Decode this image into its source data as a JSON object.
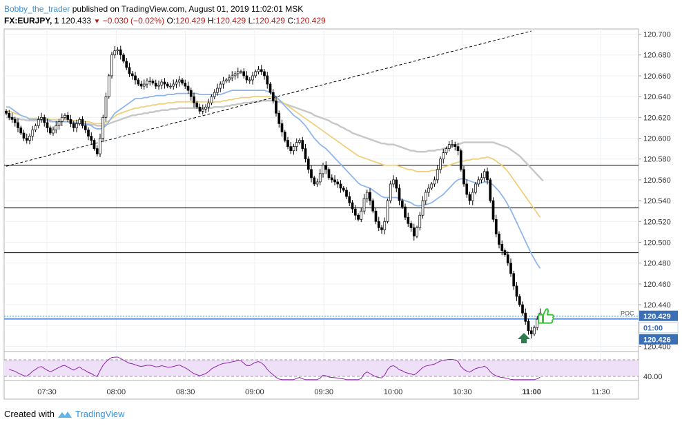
{
  "header": {
    "author": "Bobby_the_trader",
    "published": "published on TradingView.com, August 01, 2019 11:02:01 MSK"
  },
  "ohlc": {
    "symbol": "FX:EURJPY, 1",
    "last": "120.433",
    "change": "−0.030 (−0.02%)",
    "o_label": "O:",
    "o": "120.429",
    "h_label": "H:",
    "h": "120.429",
    "l_label": "L:",
    "l": "120.429",
    "c_label": "C:",
    "c": "120.429"
  },
  "footer": {
    "created_with": "Created with",
    "brand": "TradingView"
  },
  "colors": {
    "up": "#ffffff",
    "down": "#000000",
    "rsi_line": "#8e24aa",
    "rsi_band": "#ede0f7",
    "ema_blue": "#8fb6e8",
    "ema_yellow": "#f0cf7a",
    "ema_gray": "#c8c8c8",
    "price_label": "#3a6fb5",
    "thumb": "#3ac43a",
    "arrow": "#2e7d4f"
  },
  "chart_data": {
    "type": "candlestick",
    "ylim": [
      120.395,
      120.705
    ],
    "y_ticks": [
      "120.700",
      "120.680",
      "120.660",
      "120.640",
      "120.620",
      "120.600",
      "120.580",
      "120.560",
      "120.540",
      "120.520",
      "120.500",
      "120.480",
      "120.460",
      "120.440",
      "120.420",
      "120.400"
    ],
    "x_ticks": [
      "07:30",
      "08:00",
      "08:30",
      "09:00",
      "09:30",
      "10:00",
      "10:30",
      "11:00",
      "11:30"
    ],
    "horizontal_levels": [
      120.574,
      120.533,
      120.49
    ],
    "poc": {
      "label": "POC",
      "value": 120.429
    },
    "price_labels": {
      "current": "120.429",
      "countdown": "01:00",
      "low_marker": "120.426"
    },
    "trendline": {
      "from": [
        0,
        120.573
      ],
      "to": [
        179,
        120.703
      ]
    },
    "rsi": {
      "level_label": "40.00",
      "upper": 70,
      "lower": 30
    },
    "candles_close": [
      120.624,
      120.62,
      120.618,
      120.615,
      120.61,
      120.605,
      120.6,
      120.598,
      120.602,
      120.608,
      120.612,
      120.618,
      120.62,
      120.615,
      120.61,
      120.605,
      120.608,
      120.612,
      120.616,
      120.62,
      120.622,
      120.618,
      120.614,
      120.61,
      120.614,
      120.618,
      120.612,
      120.608,
      120.602,
      120.598,
      120.59,
      120.585,
      120.6,
      120.62,
      120.64,
      120.66,
      120.68,
      120.684,
      120.685,
      120.68,
      120.674,
      120.668,
      120.662,
      120.66,
      120.656,
      120.652,
      120.65,
      120.652,
      120.655,
      120.655,
      120.653,
      120.65,
      120.651,
      120.654,
      120.652,
      120.65,
      120.65,
      120.652,
      120.654,
      120.656,
      120.653,
      120.65,
      120.646,
      120.64,
      120.634,
      120.63,
      120.626,
      120.628,
      120.63,
      120.634,
      120.64,
      120.644,
      120.648,
      120.652,
      120.655,
      120.656,
      120.658,
      120.66,
      120.662,
      120.664,
      120.664,
      120.66,
      120.656,
      120.656,
      120.66,
      120.664,
      120.666,
      120.664,
      120.66,
      120.652,
      120.644,
      120.636,
      120.624,
      120.614,
      120.606,
      120.598,
      120.592,
      120.588,
      120.592,
      120.596,
      120.598,
      120.59,
      120.58,
      120.57,
      120.562,
      120.556,
      120.558,
      120.566,
      120.574,
      120.57,
      120.562,
      120.56,
      120.558,
      120.556,
      120.552,
      120.55,
      120.544,
      120.538,
      120.532,
      120.526,
      120.522,
      120.53,
      120.542,
      120.548,
      120.54,
      120.53,
      120.52,
      120.514,
      120.512,
      120.52,
      120.54,
      120.556,
      120.56,
      120.552,
      120.54,
      120.534,
      120.524,
      120.518,
      120.514,
      120.506,
      120.514,
      120.526,
      120.54,
      120.548,
      120.552,
      120.556,
      120.56,
      120.57,
      120.58,
      120.586,
      120.59,
      120.594,
      120.594,
      120.592,
      120.588,
      120.57,
      120.556,
      120.546,
      120.54,
      120.548,
      120.556,
      120.56,
      120.562,
      120.568,
      120.56,
      120.54,
      120.522,
      120.508,
      120.498,
      120.492,
      120.488,
      120.48,
      120.47,
      120.458,
      120.448,
      120.44,
      120.432,
      120.424,
      120.415,
      120.412,
      120.418,
      120.426,
      120.432
    ],
    "ema_blue": [
      120.63,
      120.63,
      120.628,
      120.626,
      120.624,
      120.622,
      120.621,
      120.62,
      120.618,
      120.618,
      120.618,
      120.618,
      120.618,
      120.618,
      120.618,
      120.617,
      120.616,
      120.616,
      120.616,
      120.616,
      120.616,
      120.616,
      120.615,
      120.615,
      120.614,
      120.614,
      120.614,
      120.613,
      120.613,
      120.612,
      120.61,
      120.609,
      120.609,
      120.61,
      120.612,
      120.616,
      120.62,
      120.624,
      120.626,
      120.628,
      120.63,
      120.632,
      120.634,
      120.636,
      120.638,
      120.638,
      120.638,
      120.639,
      120.639,
      120.64,
      120.64,
      120.641,
      120.641,
      120.641,
      120.641,
      120.642,
      120.642,
      120.642,
      120.643,
      120.643,
      120.643,
      120.643,
      120.643,
      120.643,
      120.643,
      120.643,
      120.642,
      120.642,
      120.642,
      120.642,
      120.642,
      120.642,
      120.642,
      120.642,
      120.643,
      120.644,
      120.645,
      120.646,
      120.646,
      120.646,
      120.646,
      120.646,
      120.646,
      120.646,
      120.646,
      120.646,
      120.646,
      120.646,
      120.646,
      120.645,
      120.644,
      120.642,
      120.64,
      120.637,
      120.634,
      120.631,
      120.628,
      120.625,
      120.622,
      120.62,
      120.618,
      120.615,
      120.612,
      120.608,
      120.604,
      120.6,
      120.597,
      120.594,
      120.592,
      120.59,
      120.587,
      120.584,
      120.581,
      120.578,
      120.575,
      120.572,
      120.569,
      120.566,
      120.563,
      120.56,
      120.557,
      120.555,
      120.554,
      120.553,
      120.552,
      120.55,
      120.548,
      120.546,
      120.544,
      120.543,
      120.543,
      120.543,
      120.543,
      120.543,
      120.542,
      120.541,
      120.54,
      120.539,
      120.538,
      120.536,
      120.535,
      120.535,
      120.536,
      120.536,
      120.537,
      120.538,
      120.54,
      120.542,
      120.544,
      120.546,
      120.549,
      120.552,
      120.555,
      120.558,
      120.56,
      120.561,
      120.561,
      120.56,
      120.559,
      120.558,
      120.557,
      120.557,
      120.557,
      120.558,
      120.558,
      120.557,
      120.555,
      120.552,
      120.549,
      120.545,
      120.541,
      120.536,
      120.531,
      120.525,
      120.519,
      120.513,
      120.507,
      120.501,
      120.495,
      120.489,
      120.484,
      120.479,
      120.475
    ],
    "ema_yellow": [
      120.626,
      120.626,
      120.625,
      120.624,
      120.623,
      120.622,
      120.621,
      120.62,
      120.619,
      120.619,
      120.619,
      120.619,
      120.619,
      120.619,
      120.619,
      120.618,
      120.618,
      120.618,
      120.618,
      120.618,
      120.618,
      120.618,
      120.617,
      120.617,
      120.617,
      120.617,
      120.616,
      120.616,
      120.616,
      120.615,
      120.614,
      120.614,
      120.614,
      120.614,
      120.615,
      120.617,
      120.619,
      120.621,
      120.623,
      120.624,
      120.625,
      120.626,
      120.627,
      120.628,
      120.629,
      120.629,
      120.63,
      120.63,
      120.631,
      120.631,
      120.632,
      120.632,
      120.633,
      120.633,
      120.633,
      120.634,
      120.634,
      120.634,
      120.635,
      120.635,
      120.635,
      120.635,
      120.635,
      120.635,
      120.635,
      120.635,
      120.635,
      120.635,
      120.635,
      120.635,
      120.635,
      120.635,
      120.635,
      120.635,
      120.636,
      120.636,
      120.637,
      120.637,
      120.638,
      120.638,
      120.639,
      120.639,
      120.639,
      120.639,
      120.64,
      120.64,
      120.64,
      120.64,
      120.64,
      120.64,
      120.64,
      120.639,
      120.638,
      120.637,
      120.635,
      120.633,
      120.631,
      120.629,
      120.627,
      120.625,
      120.623,
      120.621,
      120.619,
      120.617,
      120.615,
      120.613,
      120.611,
      120.609,
      120.607,
      120.605,
      120.603,
      120.601,
      120.599,
      120.597,
      120.595,
      120.593,
      120.591,
      120.589,
      120.587,
      120.585,
      120.583,
      120.582,
      120.581,
      120.58,
      120.579,
      120.578,
      120.577,
      120.576,
      120.575,
      120.574,
      120.574,
      120.574,
      120.574,
      120.574,
      120.573,
      120.572,
      120.571,
      120.57,
      120.57,
      120.569,
      120.568,
      120.568,
      120.568,
      120.568,
      120.568,
      120.569,
      120.569,
      120.57,
      120.571,
      120.572,
      120.573,
      120.574,
      120.575,
      120.576,
      120.577,
      120.578,
      120.578,
      120.579,
      120.579,
      120.58,
      120.58,
      120.58,
      120.581,
      120.581,
      120.582,
      120.581,
      120.58,
      120.578,
      120.576,
      120.574,
      120.571,
      120.568,
      120.564,
      120.56,
      120.556,
      120.552,
      120.548,
      120.544,
      120.54,
      120.536,
      120.532,
      120.528,
      120.524
    ],
    "ema_gray": [
      120.62,
      120.62,
      120.62,
      120.619,
      120.619,
      120.618,
      120.618,
      120.617,
      120.617,
      120.617,
      120.617,
      120.617,
      120.617,
      120.617,
      120.617,
      120.616,
      120.616,
      120.616,
      120.616,
      120.616,
      120.616,
      120.616,
      120.615,
      120.615,
      120.615,
      120.615,
      120.614,
      120.614,
      120.614,
      120.613,
      120.613,
      120.612,
      120.612,
      120.612,
      120.613,
      120.614,
      120.615,
      120.616,
      120.617,
      120.618,
      120.619,
      120.62,
      120.621,
      120.622,
      120.622,
      120.623,
      120.623,
      120.624,
      120.624,
      120.625,
      120.625,
      120.626,
      120.626,
      120.627,
      120.627,
      120.627,
      120.628,
      120.628,
      120.628,
      120.629,
      120.629,
      120.629,
      120.629,
      120.629,
      120.629,
      120.629,
      120.629,
      120.629,
      120.629,
      120.629,
      120.629,
      120.63,
      120.63,
      120.63,
      120.63,
      120.631,
      120.631,
      120.632,
      120.632,
      120.633,
      120.633,
      120.634,
      120.634,
      120.634,
      120.635,
      120.635,
      120.635,
      120.636,
      120.636,
      120.636,
      120.636,
      120.636,
      120.635,
      120.635,
      120.634,
      120.633,
      120.632,
      120.631,
      120.63,
      120.629,
      120.628,
      120.627,
      120.626,
      120.625,
      120.624,
      120.622,
      120.621,
      120.62,
      120.619,
      120.618,
      120.617,
      120.615,
      120.614,
      120.613,
      120.611,
      120.61,
      120.608,
      120.607,
      120.605,
      120.604,
      120.603,
      120.602,
      120.601,
      120.6,
      120.599,
      120.598,
      120.597,
      120.596,
      120.595,
      120.595,
      120.594,
      120.594,
      120.594,
      120.593,
      120.592,
      120.591,
      120.59,
      120.589,
      120.588,
      120.588,
      120.587,
      120.587,
      120.587,
      120.587,
      120.588,
      120.588,
      120.588,
      120.589,
      120.589,
      120.59,
      120.591,
      120.592,
      120.592,
      120.593,
      120.594,
      120.595,
      120.596,
      120.596,
      120.596,
      120.596,
      120.596,
      120.596,
      120.596,
      120.596,
      120.596,
      120.596,
      120.596,
      120.595,
      120.594,
      120.593,
      120.592,
      120.591,
      120.589,
      120.587,
      120.585,
      120.583,
      120.58,
      120.577,
      120.574,
      120.571,
      120.568,
      120.565,
      120.562,
      120.559
    ]
  }
}
